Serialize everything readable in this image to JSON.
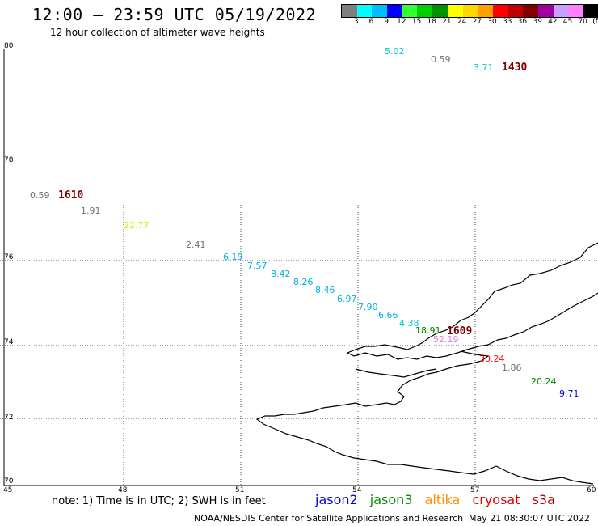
{
  "header": {
    "title": "12:00 – 23:59 UTC 05/19/2022",
    "subtitle": "12 hour collection of altimeter wave heights"
  },
  "color_scale": {
    "colors": [
      "#7f7f7f",
      "#00ffff",
      "#00bfff",
      "#0000ff",
      "#33ff33",
      "#00d000",
      "#009000",
      "#ffff00",
      "#ffd700",
      "#ffa000",
      "#ff0000",
      "#c00000",
      "#800000",
      "#a000a0",
      "#c8a0ff",
      "#ff80ff",
      "#000000"
    ],
    "labels": [
      "3",
      "6",
      "9",
      "12",
      "15",
      "18",
      "21",
      "24",
      "27",
      "30",
      "33",
      "36",
      "39",
      "42",
      "45",
      "70",
      "(ft)"
    ]
  },
  "axes": {
    "lat_labels": [
      "80",
      "78",
      "76",
      "74",
      "72",
      "70"
    ],
    "lon_labels": [
      "45",
      "48",
      "51",
      "54",
      "57",
      "60"
    ]
  },
  "observations": [
    {
      "value": "5.02",
      "color": "#00c8d0"
    },
    {
      "value": "0.59",
      "color": "#707070"
    },
    {
      "value": "3.71",
      "color": "#00c8d0"
    },
    {
      "value": "0.59",
      "color": "#707070"
    },
    {
      "value": "1.91",
      "color": "#707070"
    },
    {
      "value": "22.77",
      "color": "#e8e800"
    },
    {
      "value": "2.41",
      "color": "#707070"
    },
    {
      "value": "6.19",
      "color": "#00b0e0"
    },
    {
      "value": "7.57",
      "color": "#00b0e0"
    },
    {
      "value": "8.42",
      "color": "#00b0e0"
    },
    {
      "value": "8.26",
      "color": "#00b0e0"
    },
    {
      "value": "8.46",
      "color": "#00b0e0"
    },
    {
      "value": "6.97",
      "color": "#00b0e0"
    },
    {
      "value": "7.90",
      "color": "#00b0e0"
    },
    {
      "value": "6.66",
      "color": "#00b0e0"
    },
    {
      "value": "4.38",
      "color": "#00c8d0"
    },
    {
      "value": "18.91",
      "color": "#008000"
    },
    {
      "value": "52.19",
      "color": "#e080e0"
    },
    {
      "value": "30.24",
      "color": "#ff0000"
    },
    {
      "value": "1.86",
      "color": "#707070"
    },
    {
      "value": "20.24",
      "color": "#008000"
    },
    {
      "value": "9.71",
      "color": "#0000d0"
    }
  ],
  "times": [
    "1430",
    "1610",
    "1609"
  ],
  "note": "note: 1) Time is in UTC; 2) SWH is in feet",
  "satellites": [
    {
      "name": "jason2",
      "color": "#0000e0"
    },
    {
      "name": "jason3",
      "color": "#009000"
    },
    {
      "name": "altika",
      "color": "#ff9000"
    },
    {
      "name": "cryosat",
      "color": "#e00000"
    },
    {
      "name": "s3a",
      "color": "#c00000"
    }
  ],
  "footer": {
    "credit": "NOAA/NESDIS Center for Satellite Applications and Research",
    "timestamp": "May 21 08:30:07 UTC 2022"
  }
}
